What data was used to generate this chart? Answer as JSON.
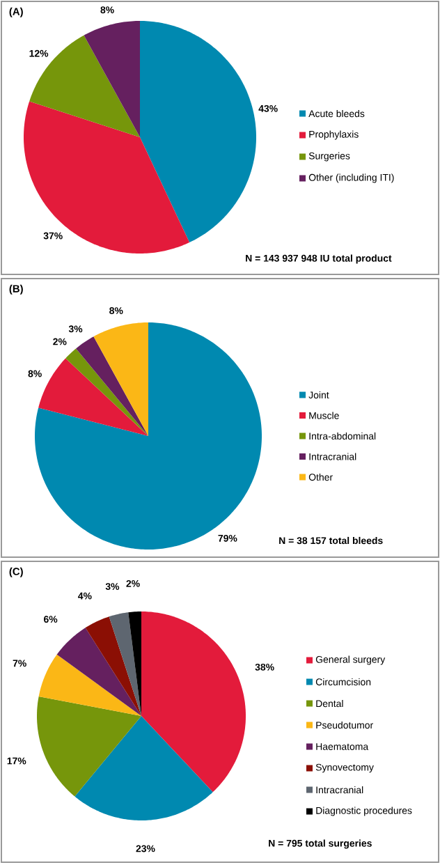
{
  "chart_data": [
    {
      "type": "pie",
      "title": "(A)",
      "categories": [
        "Acute bleeds",
        "Prophylaxis",
        "Surgeries",
        "Other (including ITI)"
      ],
      "values": [
        43,
        37,
        12,
        8
      ],
      "value_labels": [
        "43%",
        "37%",
        "12%",
        "8%"
      ],
      "colors": [
        "#0089b0",
        "#e31b3b",
        "#76960b",
        "#65205f"
      ],
      "legend": "right",
      "annotations": [
        "N = 143 937 948 IU total product"
      ]
    },
    {
      "type": "pie",
      "title": "(B)",
      "categories": [
        "Joint",
        "Muscle",
        "Intra-abdominal",
        "Intracranial",
        "Other"
      ],
      "values": [
        79,
        8,
        2,
        3,
        8
      ],
      "value_labels": [
        "79%",
        "8%",
        "2%",
        "3%",
        "8%"
      ],
      "colors": [
        "#0089b0",
        "#e31b3b",
        "#76960b",
        "#65205f",
        "#fbb716"
      ],
      "legend": "right",
      "annotations": [
        "N = 38 157 total bleeds"
      ]
    },
    {
      "type": "pie",
      "title": "(C)",
      "categories": [
        "General surgery",
        "Circumcision",
        "Dental",
        "Pseudotumor",
        "Haematoma",
        "Synovectomy",
        "Intracranial",
        "Diagnostic procedures"
      ],
      "values": [
        38,
        23,
        17,
        7,
        6,
        4,
        3,
        2
      ],
      "value_labels": [
        "38%",
        "23%",
        "17%",
        "7%",
        "6%",
        "4%",
        "3%",
        "2%"
      ],
      "colors": [
        "#e31b3b",
        "#0089b0",
        "#76960b",
        "#fbb716",
        "#65205f",
        "#8b0f04",
        "#5e6670",
        "#000000"
      ],
      "legend": "right",
      "annotations": [
        "N = 795 total surgeries"
      ]
    }
  ]
}
